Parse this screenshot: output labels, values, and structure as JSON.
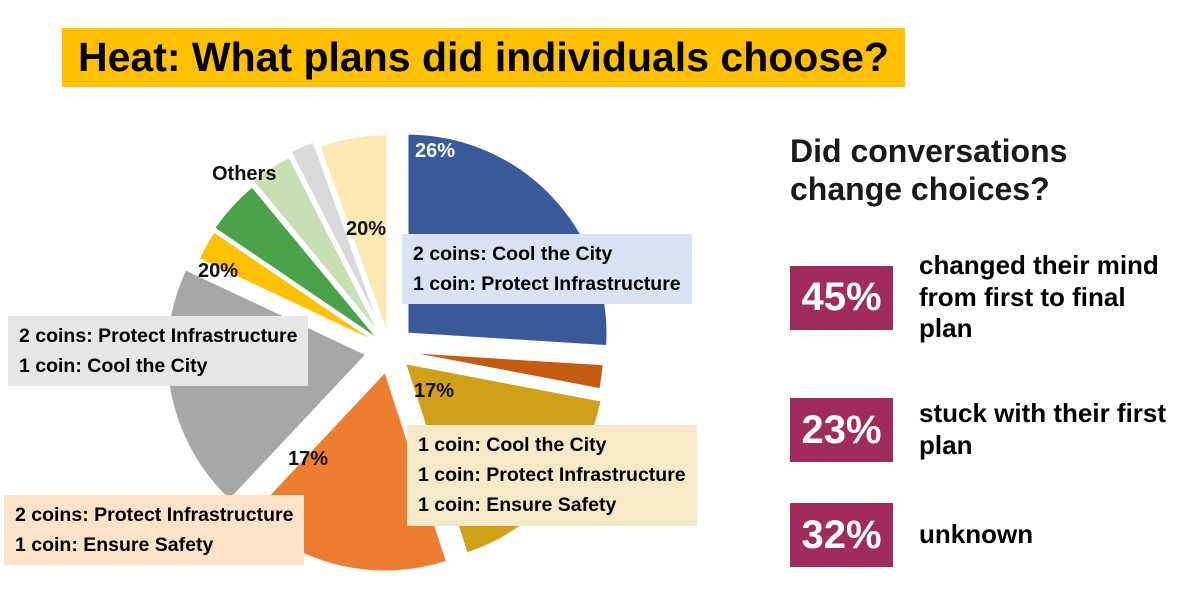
{
  "header": {
    "title": "Heat: What plans did individuals choose?",
    "highlight_color": "#ffc000"
  },
  "chart_data": {
    "type": "pie",
    "title": "Heat: What plans did individuals choose?",
    "unit": "percent",
    "slices": [
      {
        "id": "blue",
        "label": "2 coins: Cool the City + 1 coin: Protect Infrastructure",
        "value": 26,
        "color": "#3a5a9b",
        "explode": 24
      },
      {
        "id": "others-dark-orange",
        "label": "Others",
        "value": 2,
        "color": "#c55a11",
        "explode": 14
      },
      {
        "id": "gold",
        "label": "1 coin: Cool the City + 1 coin: Protect Infrastructure + 1 coin: Ensure Safety",
        "value": 17,
        "color": "#cfa018",
        "explode": 20
      },
      {
        "id": "orange",
        "label": "2 coins: Protect Infrastructure + 1 coin: Ensure Safety",
        "value": 17,
        "color": "#ed7d31",
        "explode": 22
      },
      {
        "id": "gray",
        "label": "2 coins: Protect Infrastructure + 1 coin: Cool the City",
        "value": 20,
        "color": "#a7a7a7",
        "explode": 24
      },
      {
        "id": "others-yellow",
        "label": "Others",
        "value": 2.5,
        "color": "#ffc000",
        "explode": 12
      },
      {
        "id": "others-green",
        "label": "Others",
        "value": 4.5,
        "color": "#4aa34a",
        "explode": 14
      },
      {
        "id": "others-pale-green",
        "label": "Others",
        "value": 3.5,
        "color": "#c6e0b4",
        "explode": 18
      },
      {
        "id": "others-pale-gray",
        "label": "Others",
        "value": 2,
        "color": "#d9d9d9",
        "explode": 22
      },
      {
        "id": "others-cream",
        "label": "Others",
        "value": 5.5,
        "color": "#fce8b2",
        "explode": 16
      }
    ],
    "groups": {
      "others": {
        "label": "Others",
        "value": 20,
        "pct_label": "20%"
      }
    },
    "percent_labels": {
      "blue": "26%",
      "others": "20%",
      "gray": "20%",
      "gold": "17%",
      "orange": "17%"
    }
  },
  "callouts": {
    "blue": {
      "lines": [
        "2 coins: Cool the City",
        "1 coin: Protect Infrastructure"
      ],
      "bg": "#d9e2f3"
    },
    "gray": {
      "lines": [
        "2 coins: Protect Infrastructure",
        "1 coin: Cool the City"
      ],
      "bg": "#e7e6e6"
    },
    "gold": {
      "lines": [
        "1 coin: Cool the City",
        "1 coin: Protect Infrastructure",
        "1 coin: Ensure Safety"
      ],
      "bg": "#f5e9c8"
    },
    "orange": {
      "lines": [
        "2 coins: Protect Infrastructure",
        "1 coin: Ensure Safety"
      ],
      "bg": "#fbe2c9"
    }
  },
  "right_panel": {
    "heading": "Did conversations change choices?",
    "box_color": "#a12c5c",
    "stats": [
      {
        "pct": "45%",
        "desc": "changed their mind from first to final plan"
      },
      {
        "pct": "23%",
        "desc": "stuck with their first plan"
      },
      {
        "pct": "32%",
        "desc": "unknown"
      }
    ]
  }
}
